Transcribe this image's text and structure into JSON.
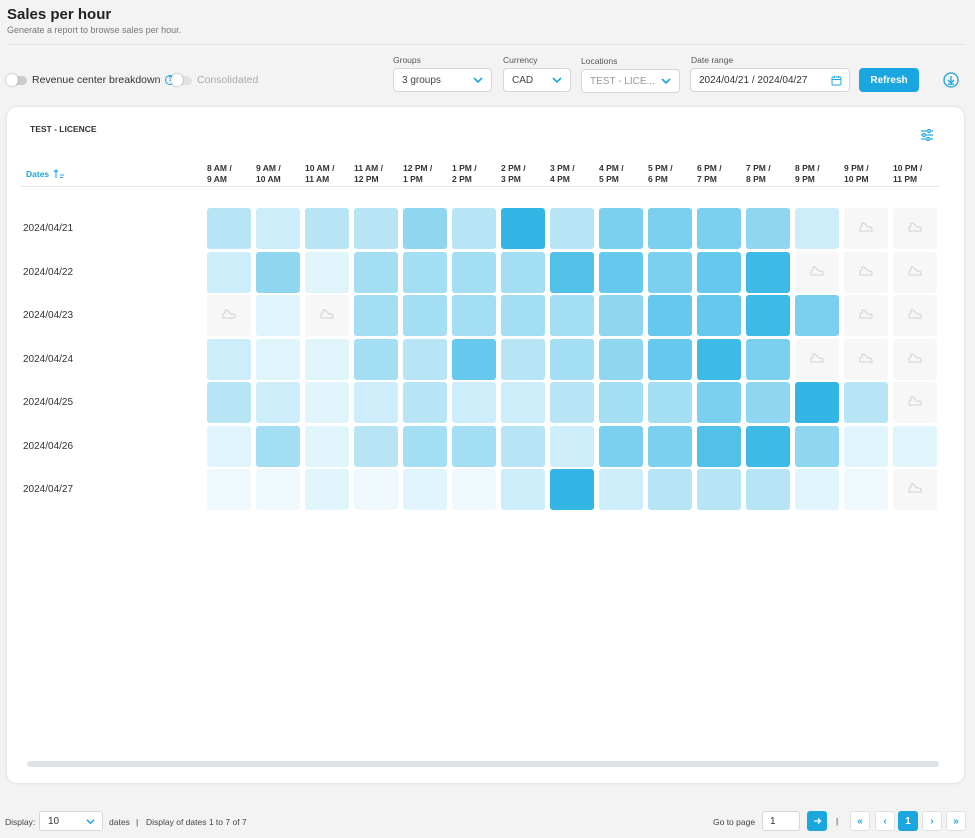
{
  "page": {
    "title": "Sales per hour",
    "subtitle": "Generate a report to browse sales per hour."
  },
  "toolbar": {
    "revenue_toggle_label": "Revenue center breakdown",
    "consolidated_label": "Consolidated",
    "groups_label": "Groups",
    "groups_value": "3 groups",
    "currency_label": "Currency",
    "currency_value": "CAD",
    "locations_label": "Locations",
    "locations_value": "TEST - LICE...",
    "date_range_label": "Date range",
    "date_range_value": "2024/04/21 / 2024/04/27",
    "refresh_label": "Refresh"
  },
  "card": {
    "title": "TEST - LICENCE",
    "dates_col_label": "Dates"
  },
  "colors": {
    "accent": "#1ba6e0",
    "heat_max": "#33b6e5",
    "empty": "#f7f7f7"
  },
  "heatmap": {
    "columns": [
      [
        "8 AM /",
        "9 AM"
      ],
      [
        "9 AM /",
        "10 AM"
      ],
      [
        "10 AM /",
        "11 AM"
      ],
      [
        "11 AM /",
        "12 PM"
      ],
      [
        "12 PM /",
        "1 PM"
      ],
      [
        "1 PM /",
        "2 PM"
      ],
      [
        "2 PM /",
        "3 PM"
      ],
      [
        "3 PM /",
        "4 PM"
      ],
      [
        "4 PM /",
        "5 PM"
      ],
      [
        "5 PM /",
        "6 PM"
      ],
      [
        "6 PM /",
        "7 PM"
      ],
      [
        "7 PM /",
        "8 PM"
      ],
      [
        "8 PM /",
        "9 PM"
      ],
      [
        "9 PM /",
        "10 PM"
      ],
      [
        "10 PM /",
        "11 PM"
      ]
    ],
    "rows": [
      {
        "date": "2024/04/21",
        "levels": [
          0.35,
          0.25,
          0.35,
          0.35,
          0.55,
          0.35,
          1.0,
          0.35,
          0.65,
          0.65,
          0.65,
          0.55,
          0.25,
          null,
          null
        ]
      },
      {
        "date": "2024/04/22",
        "levels": [
          0.25,
          0.55,
          0.15,
          0.45,
          0.45,
          0.45,
          0.45,
          0.85,
          0.75,
          0.65,
          0.75,
          0.95,
          null,
          null,
          null
        ]
      },
      {
        "date": "2024/04/23",
        "levels": [
          null,
          0.15,
          null,
          0.45,
          0.45,
          0.45,
          0.45,
          0.45,
          0.55,
          0.75,
          0.75,
          0.95,
          0.65,
          null,
          null
        ]
      },
      {
        "date": "2024/04/24",
        "levels": [
          0.25,
          0.15,
          0.15,
          0.45,
          0.35,
          0.75,
          0.35,
          0.45,
          0.55,
          0.75,
          0.95,
          0.65,
          null,
          null,
          null
        ]
      },
      {
        "date": "2024/04/25",
        "levels": [
          0.35,
          0.25,
          0.15,
          0.25,
          0.35,
          0.25,
          0.25,
          0.35,
          0.45,
          0.45,
          0.65,
          0.55,
          1.0,
          0.35,
          null
        ]
      },
      {
        "date": "2024/04/26",
        "levels": [
          0.15,
          0.45,
          0.15,
          0.35,
          0.45,
          0.45,
          0.35,
          0.25,
          0.65,
          0.65,
          0.85,
          0.95,
          0.55,
          0.15,
          0.15
        ]
      },
      {
        "date": "2024/04/27",
        "levels": [
          0.08,
          0.08,
          0.15,
          0.08,
          0.15,
          0.08,
          0.25,
          1.0,
          0.25,
          0.35,
          0.35,
          0.35,
          0.15,
          0.08,
          null
        ]
      }
    ]
  },
  "footer": {
    "display_label": "Display:",
    "display_value": "10",
    "dates_word": "dates",
    "separator": "|",
    "display_info": "Display of dates 1 to 7 of 7",
    "goto_label": "Go to page",
    "goto_value": "1",
    "current_page": "1"
  }
}
